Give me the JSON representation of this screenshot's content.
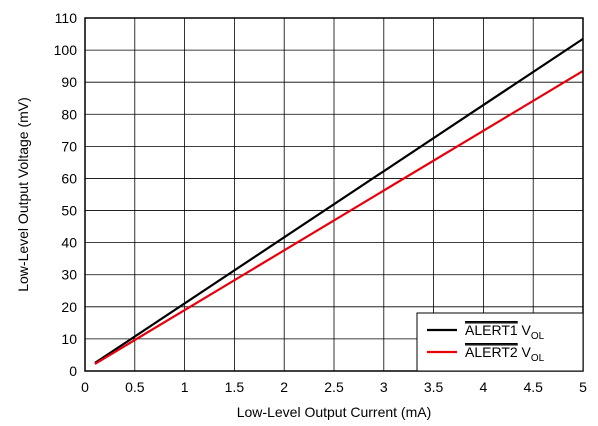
{
  "chart_data": {
    "type": "line",
    "xlabel": "Low-Level Output Current (mA)",
    "ylabel": "Low-Level Output Voltage (mV)",
    "xlim": [
      0,
      5
    ],
    "ylim": [
      0,
      110
    ],
    "xticks": [
      0,
      0.5,
      1,
      1.5,
      2,
      2.5,
      3,
      3.5,
      4,
      4.5,
      5
    ],
    "xtick_labels": [
      "0",
      "0.5",
      "1",
      "1.5",
      "2",
      "2.5",
      "3",
      "3.5",
      "4",
      "4.5",
      "5"
    ],
    "yticks": [
      0,
      10,
      20,
      30,
      40,
      50,
      60,
      70,
      80,
      90,
      100,
      110
    ],
    "ytick_labels": [
      "0",
      "10",
      "20",
      "30",
      "40",
      "50",
      "60",
      "70",
      "80",
      "90",
      "100",
      "110"
    ],
    "grid": true,
    "legend_position": "bottom-right",
    "series": [
      {
        "name": "ALERT1",
        "name_overline": true,
        "name_suffix": "V",
        "name_subscript": "OL",
        "color": "#000000",
        "x": [
          0.1,
          5
        ],
        "y": [
          2.5,
          103.5
        ]
      },
      {
        "name": "ALERT2",
        "name_overline": true,
        "name_suffix": "V",
        "name_subscript": "OL",
        "color": "#e8000b",
        "x": [
          0.1,
          5
        ],
        "y": [
          2.2,
          93.5
        ]
      }
    ]
  }
}
